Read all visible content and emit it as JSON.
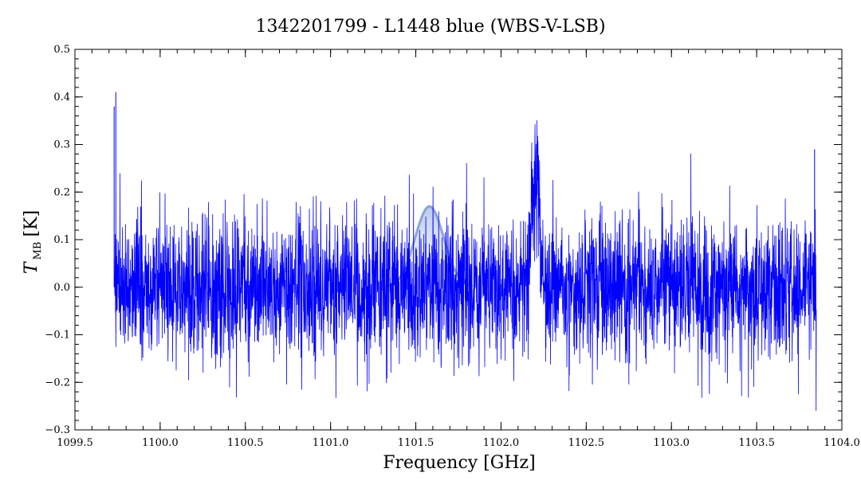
{
  "chart_data": {
    "type": "line",
    "title": "1342201799 - L1448 blue (WBS-V-LSB)",
    "xlabel": "Frequency [GHz]",
    "ylabel": {
      "main": "T",
      "sub": "MB",
      "unit": "[K]"
    },
    "xlim": [
      1099.5,
      1104.0
    ],
    "ylim": [
      -0.3,
      0.5
    ],
    "xticks": [
      1099.5,
      1100.0,
      1100.5,
      1101.0,
      1101.5,
      1102.0,
      1102.5,
      1103.0,
      1103.5,
      1104.0
    ],
    "xtick_labels": [
      "1099.5",
      "1100.0",
      "1100.5",
      "1101.0",
      "1101.5",
      "1102.0",
      "1102.5",
      "1103.0",
      "1103.5",
      "1104.0"
    ],
    "yticks": [
      -0.3,
      -0.2,
      -0.1,
      0.0,
      0.1,
      0.2,
      0.3,
      0.4,
      0.5
    ],
    "ytick_labels": [
      "−0.3",
      "−0.2",
      "−0.1",
      "0.0",
      "0.1",
      "0.2",
      "0.3",
      "0.4",
      "0.5"
    ],
    "grid": false,
    "spectrum": {
      "color": "#0000ff",
      "x_start": 1099.73,
      "x_end": 1103.85,
      "noise_rms_K": 0.075,
      "emission_line": {
        "center_GHz": 1102.2,
        "peak_K": 0.22,
        "fwhm_GHz": 0.06
      },
      "edge_spikes": [
        {
          "x": 1099.73,
          "y": 0.38
        },
        {
          "x": 1099.74,
          "y": 0.41
        },
        {
          "x": 1103.84,
          "y": 0.29
        }
      ]
    },
    "gaussian_model": {
      "color": "#6f8fc8",
      "center_GHz": 1101.58,
      "peak_K": 0.17,
      "fwhm_GHz": 0.2
    }
  }
}
